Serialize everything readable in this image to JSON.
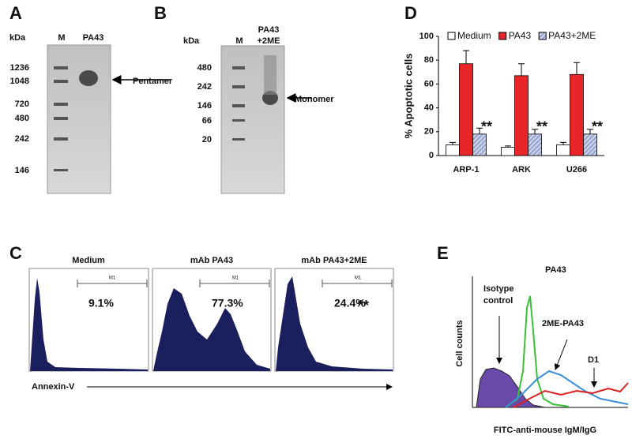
{
  "figure": {
    "panel_a": {
      "label": "A",
      "unit": "kDa",
      "lane_marker": "M",
      "lane_sample": "PA43",
      "markers": [
        1236,
        1048,
        720,
        480,
        242,
        146
      ],
      "annotation": "Pentamer"
    },
    "panel_b": {
      "label": "B",
      "unit": "kDa",
      "lane_marker": "M",
      "lane_sample": [
        "PA43",
        "+2ME"
      ],
      "markers": [
        480,
        242,
        146,
        66,
        20
      ],
      "annotation": "Monomer"
    },
    "panel_c": {
      "label": "C",
      "gate": "M1",
      "significance": "**",
      "x_label": "Annexin-V",
      "plots": [
        {
          "title": "Medium",
          "percent": "9.1%"
        },
        {
          "title": "mAb PA43",
          "percent": "77.3%"
        },
        {
          "title": "mAb PA43+2ME",
          "percent": "24.4%"
        }
      ]
    },
    "panel_e": {
      "label": "E",
      "isotype": [
        "Isotype",
        "control"
      ],
      "pa43": "PA43",
      "me_pa43": "2ME-PA43",
      "d1": "D1",
      "y_label": "Cell counts",
      "x_label": "FITC-anti-mouse IgM/IgG"
    }
  },
  "chart_data": {
    "type": "bar",
    "label": "D",
    "y_label": "% Apoptotic cells",
    "categories": [
      "ARP-1",
      "ARK",
      "U266"
    ],
    "series": [
      {
        "name": "Medium",
        "color": "#ffffff",
        "values": [
          9,
          7,
          9
        ],
        "errors": [
          2,
          1,
          2
        ]
      },
      {
        "name": "PA43",
        "color": "#e8262a",
        "values": [
          77,
          67,
          68
        ],
        "errors": [
          11,
          10,
          10
        ]
      },
      {
        "name": "PA43+2ME",
        "color": "#c6cde6",
        "pattern": "hatch",
        "values": [
          18,
          18,
          18
        ],
        "errors": [
          5,
          4,
          4
        ]
      }
    ],
    "significance_marks": [
      "**",
      "**",
      "**"
    ],
    "significance_color": "#e8262a",
    "ylim": [
      0,
      100
    ],
    "yticks": [
      0,
      20,
      40,
      60,
      80,
      100
    ],
    "legend": "top"
  }
}
